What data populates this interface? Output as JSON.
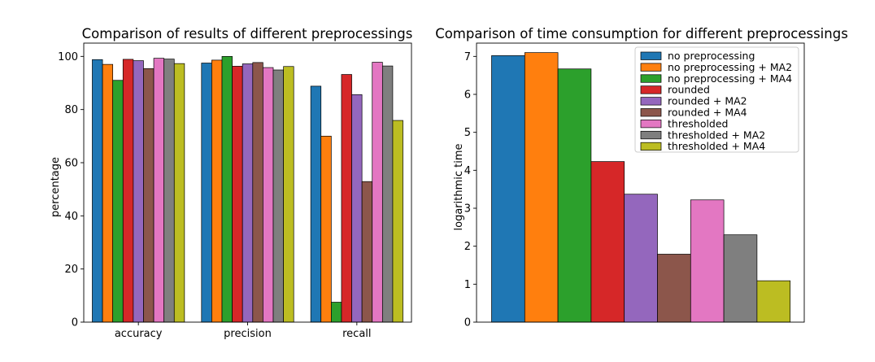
{
  "colors": [
    "#1f77b4",
    "#ff7f0e",
    "#2ca02c",
    "#d62728",
    "#9467bd",
    "#8c564b",
    "#e377c2",
    "#7f7f7f",
    "#bcbd22"
  ],
  "series_names": [
    "no preprocessing",
    "no preprocessing + MA2",
    "no preprocessing + MA4",
    "rounded",
    "rounded + MA2",
    "rounded + MA4",
    "thresholded",
    "thresholded + MA2",
    "thresholded + MA4"
  ],
  "chart_data": [
    {
      "type": "bar",
      "title": "Comparison of results of different preprocessings",
      "xlabel": "",
      "ylabel": "percentage",
      "ylim": [
        0,
        105
      ],
      "yticks": [
        0,
        20,
        40,
        60,
        80,
        100
      ],
      "categories": [
        "accuracy",
        "precision",
        "recall"
      ],
      "series": [
        {
          "name": "no preprocessing",
          "values": [
            98.8,
            97.5,
            88.8
          ]
        },
        {
          "name": "no preprocessing + MA2",
          "values": [
            97.0,
            98.6,
            70.0
          ]
        },
        {
          "name": "no preprocessing + MA4",
          "values": [
            91.0,
            100.0,
            7.5
          ]
        },
        {
          "name": "rounded",
          "values": [
            98.9,
            96.3,
            93.2
          ]
        },
        {
          "name": "rounded + MA2",
          "values": [
            98.4,
            97.2,
            85.6
          ]
        },
        {
          "name": "rounded + MA4",
          "values": [
            95.4,
            97.7,
            52.9
          ]
        },
        {
          "name": "thresholded",
          "values": [
            99.3,
            95.8,
            97.8
          ]
        },
        {
          "name": "thresholded + MA2",
          "values": [
            99.0,
            94.9,
            96.4
          ]
        },
        {
          "name": "thresholded + MA4",
          "values": [
            97.3,
            96.2,
            75.9
          ]
        }
      ]
    },
    {
      "type": "bar",
      "title": "Comparison of time consumption for different preprocessings",
      "xlabel": "",
      "ylabel": "logarithmic time",
      "ylim": [
        0,
        7.35
      ],
      "yticks": [
        0,
        1,
        2,
        3,
        4,
        5,
        6,
        7
      ],
      "legend": "top-right",
      "categories": [
        "no preprocessing",
        "no preprocessing + MA2",
        "no preprocessing + MA4",
        "rounded",
        "rounded + MA2",
        "rounded + MA4",
        "thresholded",
        "thresholded + MA2",
        "thresholded + MA4"
      ],
      "values": [
        7.02,
        7.1,
        6.67,
        4.23,
        3.37,
        1.79,
        3.22,
        2.3,
        1.09
      ]
    }
  ]
}
